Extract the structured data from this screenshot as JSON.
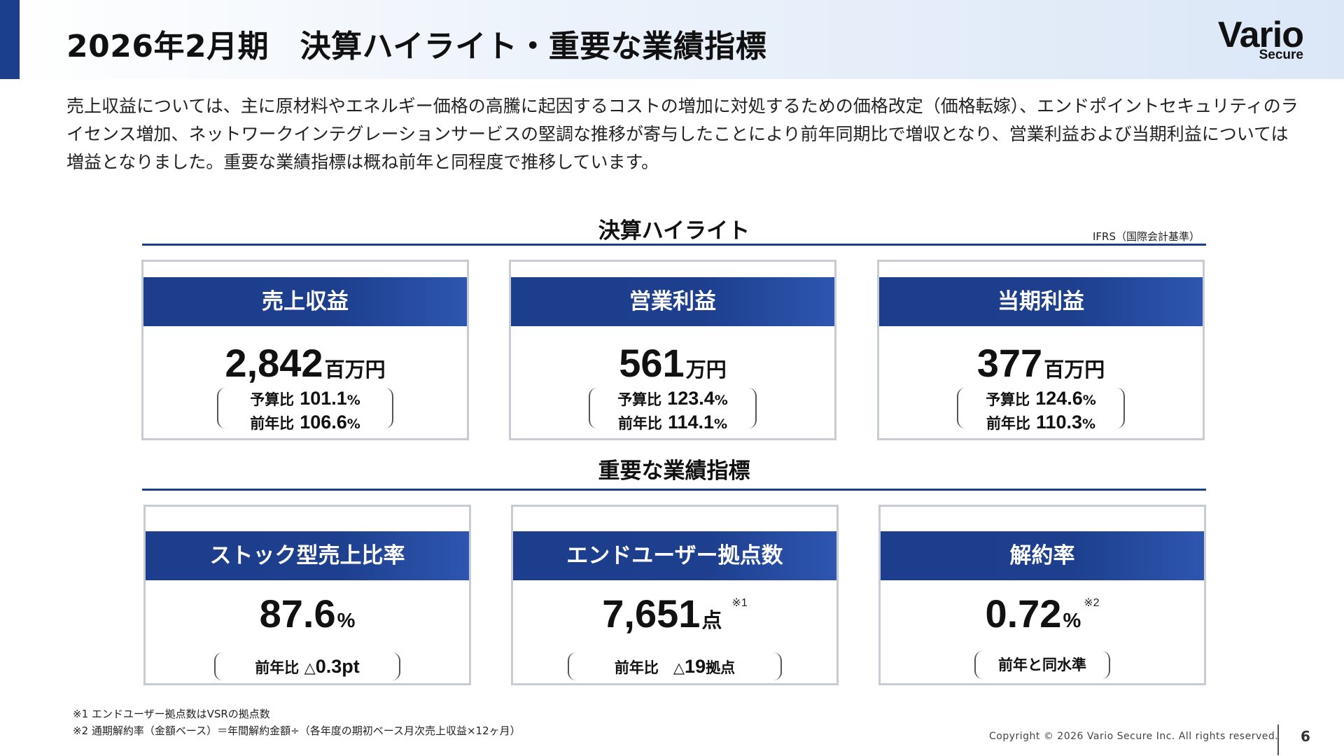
{
  "header": {
    "title": "2026年2月期　決算ハイライト・重要な業績指標",
    "logo_main": "Vario",
    "logo_sub": "Secure"
  },
  "summary": "売上収益については、主に原材料やエネルギー価格の高騰に起因するコストの増加に対処するための価格改定（価格転嫁）、エンドポイントセキュリティのライセンス増加、ネットワークインテグレーションサービスの堅調な推移が寄与したことにより前年同期比で増収となり、営業利益および当期利益については増益となりました。重要な業績指標は概ね前年と同程度で推移しています。",
  "highlights": {
    "section_title": "決算ハイライト",
    "standard_note": "IFRS（国際会計基準）",
    "cards": [
      {
        "title": "売上収益",
        "value": "2,842",
        "unit": "百万円",
        "budget_label": "予算比",
        "budget_value": "101.1",
        "prior_label": "前年比",
        "prior_value": "106.6",
        "pct_unit": "%"
      },
      {
        "title": "営業利益",
        "value": "561",
        "unit": "万円",
        "budget_label": "予算比",
        "budget_value": "123.4",
        "prior_label": "前年比",
        "prior_value": "114.1",
        "pct_unit": "%"
      },
      {
        "title": "当期利益",
        "value": "377",
        "unit": "百万円",
        "budget_label": "予算比",
        "budget_value": "124.6",
        "prior_label": "前年比",
        "prior_value": "110.3",
        "pct_unit": "%"
      }
    ]
  },
  "kpis": {
    "section_title": "重要な業績指標",
    "cards": [
      {
        "title": "ストック型売上比率",
        "value": "87.6",
        "unit": "%",
        "note_mark": "",
        "compare_label": "前年比",
        "compare_prefix": "△",
        "compare_value": "0.3",
        "compare_unit": "pt"
      },
      {
        "title": "エンドユーザー拠点数",
        "value": "7,651",
        "unit": "点",
        "note_mark": "※1",
        "compare_label": "前年比",
        "compare_prefix": "△",
        "compare_value": "19",
        "compare_unit": "拠点"
      },
      {
        "title": "解約率",
        "value": "0.72",
        "unit": "%",
        "note_mark": "※2",
        "compare_text": "前年と同水準"
      }
    ]
  },
  "footnotes": [
    "※1 エンドユーザー拠点数はVSRの拠点数",
    "※2 通期解約率（金額ベース）＝年間解約金額÷（各年度の期初ベース月次売上収益×12ヶ月）"
  ],
  "footer": {
    "copyright": "Copyright © 2026 Vario Secure Inc. All rights reserved.",
    "page_number": "6"
  }
}
